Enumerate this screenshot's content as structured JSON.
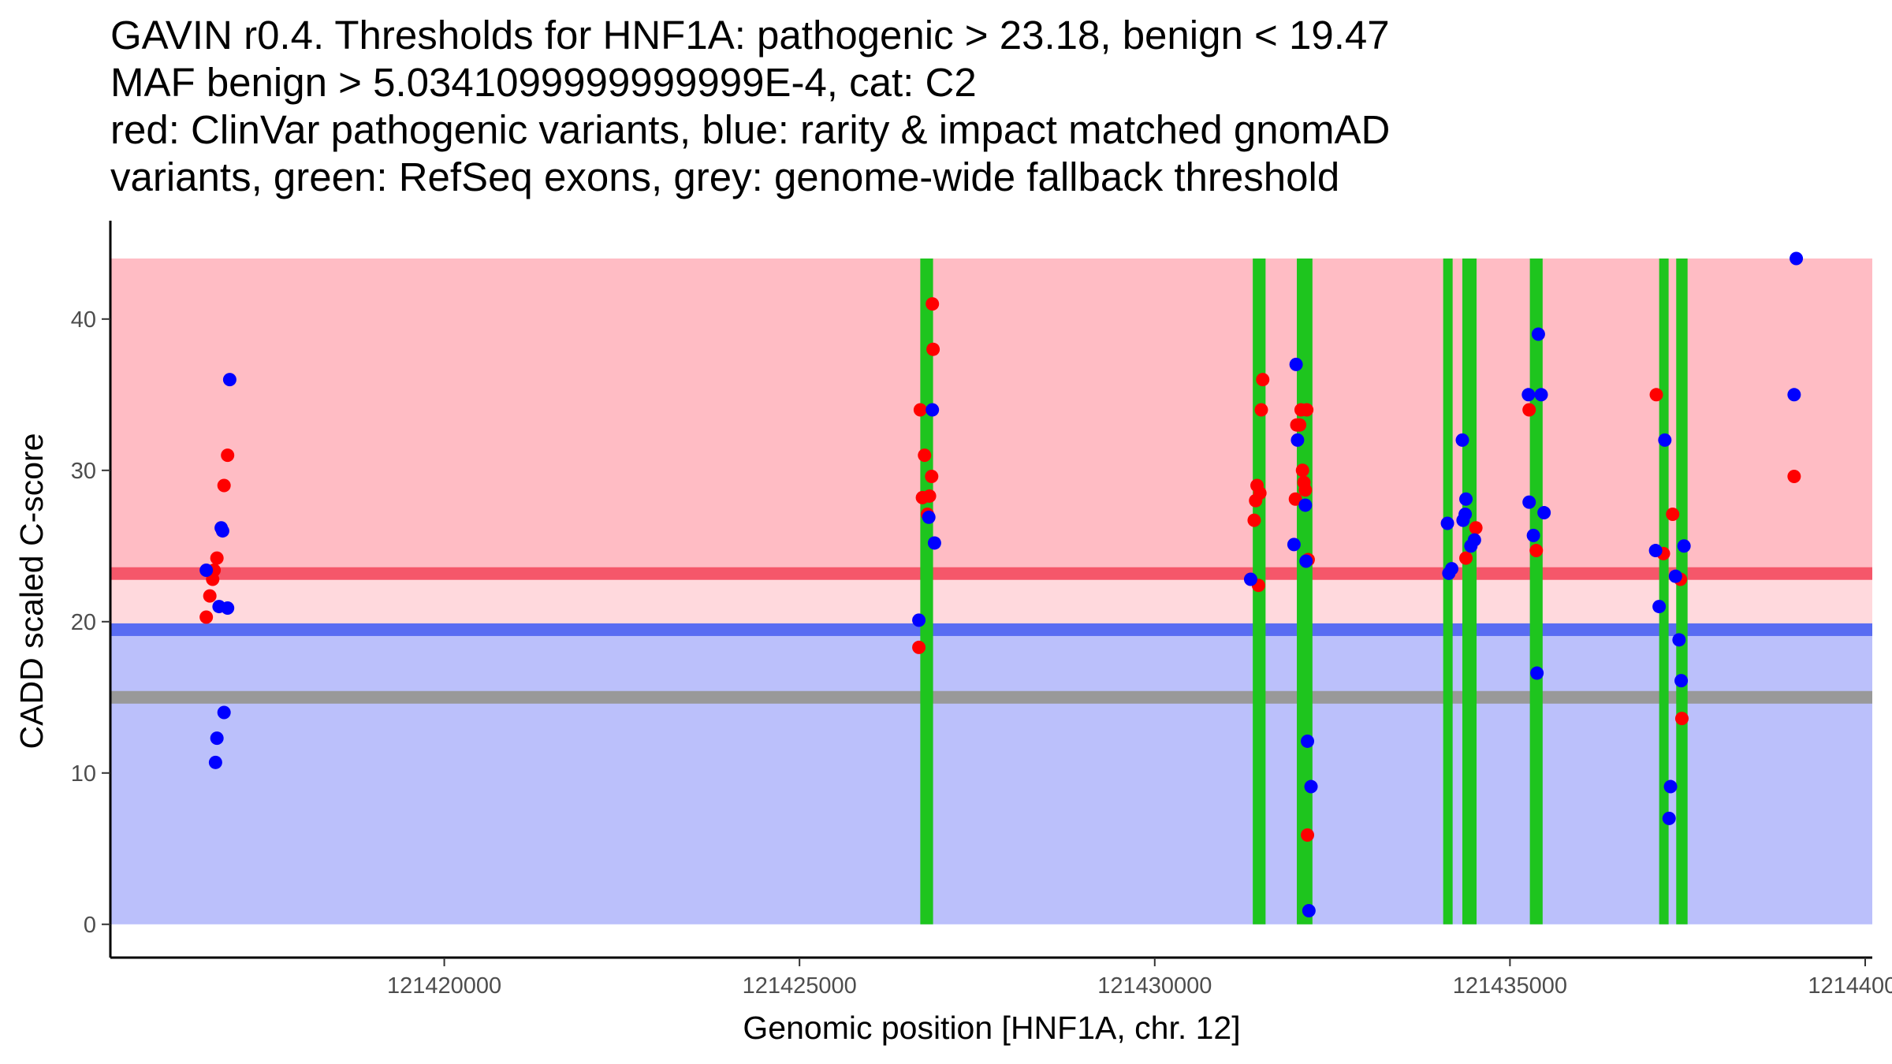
{
  "chart_data": {
    "type": "scatter",
    "title_lines": [
      "GAVIN r0.4. Thresholds for HNF1A: pathogenic > 23.18, benign < 19.47",
      "MAF benign > 5.0341099999999999E-4, cat: C2",
      "red: ClinVar pathogenic variants, blue: rarity & impact matched gnomAD",
      "variants, green: RefSeq exons, grey: genome-wide fallback threshold"
    ],
    "xlabel": "Genomic position [HNF1A, chr. 12]",
    "ylabel": "CADD scaled C-score",
    "xlim": [
      121415300,
      121440100
    ],
    "ylim": [
      -2.2,
      46.5
    ],
    "x_ticks": [
      {
        "value": 121420000,
        "label": "121420000"
      },
      {
        "value": 121425000,
        "label": "121425000"
      },
      {
        "value": 121430000,
        "label": "121430000"
      },
      {
        "value": 121435000,
        "label": "121435000"
      },
      {
        "value": 121440000,
        "label": "121440000"
      }
    ],
    "y_ticks": [
      {
        "value": 0,
        "label": "0"
      },
      {
        "value": 10,
        "label": "10"
      },
      {
        "value": 20,
        "label": "20"
      },
      {
        "value": 30,
        "label": "30"
      },
      {
        "value": 40,
        "label": "40"
      }
    ],
    "regions": {
      "x_range": [
        121415300,
        121440100
      ],
      "pathogenic_zone": {
        "from": 23.18,
        "to": 44,
        "color": "#ffbcc4"
      },
      "intermediate_zone": {
        "from": 19.47,
        "to": 23.18,
        "color": "#ffd9dd"
      },
      "benign_zone": {
        "from": 0,
        "to": 19.47,
        "color": "#bbc0fb"
      }
    },
    "thresholds": [
      {
        "name": "pathogenic",
        "value": 23.18,
        "color": "#f5576a"
      },
      {
        "name": "benign",
        "value": 19.47,
        "color": "#596cf2"
      },
      {
        "name": "fallback",
        "value": 15,
        "color": "#999999"
      }
    ],
    "exons": [
      {
        "start": 121426700,
        "end": 121426880
      },
      {
        "start": 121431380,
        "end": 121431560
      },
      {
        "start": 121432000,
        "end": 121432220
      },
      {
        "start": 121434060,
        "end": 121434190
      },
      {
        "start": 121434330,
        "end": 121434530
      },
      {
        "start": 121435280,
        "end": 121435460
      },
      {
        "start": 121437100,
        "end": 121437220
      },
      {
        "start": 121437340,
        "end": 121437500
      }
    ],
    "exon_color": "#1ec51e",
    "series": [
      {
        "name": "ClinVar pathogenic",
        "color": "#ff0000",
        "points": [
          [
            121416650,
            20.3
          ],
          [
            121416700,
            21.7
          ],
          [
            121416740,
            22.8
          ],
          [
            121416760,
            23.4
          ],
          [
            121416800,
            24.2
          ],
          [
            121416900,
            29.0
          ],
          [
            121416950,
            31.0
          ],
          [
            121426700,
            34.0
          ],
          [
            121426680,
            18.3
          ],
          [
            121426730,
            28.2
          ],
          [
            121426760,
            31.0
          ],
          [
            121426800,
            27.1
          ],
          [
            121426830,
            28.3
          ],
          [
            121426860,
            29.6
          ],
          [
            121426880,
            38.0
          ],
          [
            121426870,
            41.0
          ],
          [
            121431400,
            26.7
          ],
          [
            121431420,
            28.0
          ],
          [
            121431440,
            29.0
          ],
          [
            121431460,
            22.4
          ],
          [
            121431480,
            28.5
          ],
          [
            121431500,
            34.0
          ],
          [
            121431520,
            36.0
          ],
          [
            121432000,
            33.0
          ],
          [
            121431980,
            28.1
          ],
          [
            121432040,
            33.0
          ],
          [
            121432060,
            34.0
          ],
          [
            121432080,
            30.0
          ],
          [
            121432100,
            29.2
          ],
          [
            121432120,
            28.7
          ],
          [
            121432140,
            34.0
          ],
          [
            121432150,
            5.9
          ],
          [
            121432160,
            24.1
          ],
          [
            121434380,
            24.2
          ],
          [
            121434520,
            26.2
          ],
          [
            121435270,
            34.0
          ],
          [
            121435370,
            24.7
          ],
          [
            121437060,
            35.0
          ],
          [
            121437160,
            24.5
          ],
          [
            121437290,
            27.1
          ],
          [
            121437400,
            22.8
          ],
          [
            121437420,
            13.6
          ],
          [
            121439000,
            29.6
          ]
        ]
      },
      {
        "name": "gnomAD matched",
        "color": "#0000ff",
        "points": [
          [
            121416650,
            23.4
          ],
          [
            121416780,
            10.7
          ],
          [
            121416800,
            12.3
          ],
          [
            121416830,
            21.0
          ],
          [
            121416860,
            26.2
          ],
          [
            121416880,
            26.0
          ],
          [
            121416900,
            14.0
          ],
          [
            121416950,
            20.9
          ],
          [
            121416980,
            36.0
          ],
          [
            121426680,
            20.1
          ],
          [
            121426820,
            26.9
          ],
          [
            121426870,
            34.0
          ],
          [
            121426900,
            25.2
          ],
          [
            121431350,
            22.8
          ],
          [
            121431960,
            25.1
          ],
          [
            121432010,
            32.0
          ],
          [
            121431990,
            37.0
          ],
          [
            121432120,
            27.7
          ],
          [
            121432130,
            24.0
          ],
          [
            121432150,
            12.1
          ],
          [
            121432200,
            9.1
          ],
          [
            121432170,
            0.9
          ],
          [
            121434120,
            26.5
          ],
          [
            121434140,
            23.2
          ],
          [
            121434180,
            23.5
          ],
          [
            121434330,
            32.0
          ],
          [
            121434340,
            26.7
          ],
          [
            121434370,
            27.1
          ],
          [
            121434380,
            28.1
          ],
          [
            121434450,
            25.0
          ],
          [
            121434500,
            25.4
          ],
          [
            121435260,
            35.0
          ],
          [
            121435270,
            27.9
          ],
          [
            121435330,
            25.7
          ],
          [
            121435380,
            16.6
          ],
          [
            121435400,
            39.0
          ],
          [
            121435440,
            35.0
          ],
          [
            121435480,
            27.2
          ],
          [
            121437050,
            24.7
          ],
          [
            121437100,
            21.0
          ],
          [
            121437180,
            32.0
          ],
          [
            121437260,
            9.1
          ],
          [
            121437240,
            7.0
          ],
          [
            121437330,
            23.0
          ],
          [
            121437380,
            18.8
          ],
          [
            121437410,
            16.1
          ],
          [
            121437450,
            25.0
          ],
          [
            121439030,
            44.0
          ],
          [
            121439000,
            35.0
          ]
        ]
      }
    ]
  }
}
